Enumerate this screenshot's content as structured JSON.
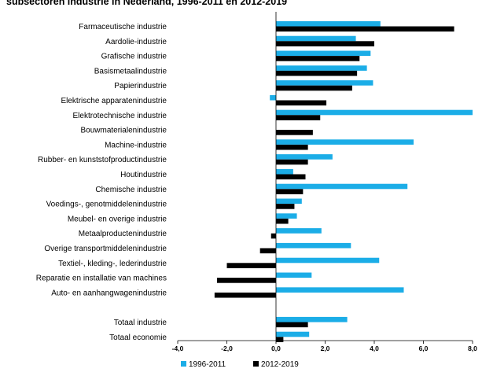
{
  "chart_data": {
    "type": "bar",
    "orientation": "horizontal",
    "title": "subsectoren industrie in Nederland, 1996-2011 en 2012-2019",
    "categories": [
      "Farmaceutische industrie",
      "Aardolie-industrie",
      "Grafische industrie",
      "Basismetaalindustrie",
      "Papierindustrie",
      "Elektrische apparatenindustrie",
      "Elektrotechnische industrie",
      "Bouwmaterialenindustrie",
      "Machine-industrie",
      "Rubber- en kunststofproductindustrie",
      "Houtindustrie",
      "Chemische industrie",
      "Voedings-, genotmiddelenindustrie",
      "Meubel- en overige industrie",
      "Metaalproductenindustrie",
      "Overige transportmiddelenindustrie",
      "Textiel-, kleding-, lederindustrie",
      "Reparatie en installatie van machines",
      "Auto- en aanhangwagenindustrie",
      "",
      "Totaal industrie",
      "Totaal economie"
    ],
    "series": [
      {
        "name": "1996-2011",
        "color": "#1BADE7",
        "values": [
          4.25,
          3.25,
          3.85,
          3.7,
          3.95,
          -0.25,
          8.0,
          null,
          5.6,
          2.3,
          0.7,
          5.35,
          1.05,
          0.85,
          1.85,
          3.05,
          4.2,
          1.45,
          5.2,
          null,
          2.9,
          1.35
        ]
      },
      {
        "name": "2012-2019",
        "color": "#000000",
        "values": [
          7.25,
          4.0,
          3.4,
          3.3,
          3.1,
          2.05,
          1.8,
          1.5,
          1.3,
          1.3,
          1.2,
          1.1,
          0.75,
          0.5,
          -0.2,
          -0.65,
          -2.0,
          -2.4,
          -2.5,
          null,
          1.3,
          0.3
        ]
      }
    ],
    "xlim": [
      -4.0,
      8.0
    ],
    "xticks": [
      -4.0,
      -2.0,
      0.0,
      2.0,
      4.0,
      6.0,
      8.0
    ],
    "xtick_labels": [
      "-4,0",
      "-2,0",
      "0,0",
      "2,0",
      "4,0",
      "6,0",
      "8,0"
    ],
    "xlabel": "",
    "ylabel": "",
    "grid": false,
    "legend_position": "bottom-left"
  }
}
